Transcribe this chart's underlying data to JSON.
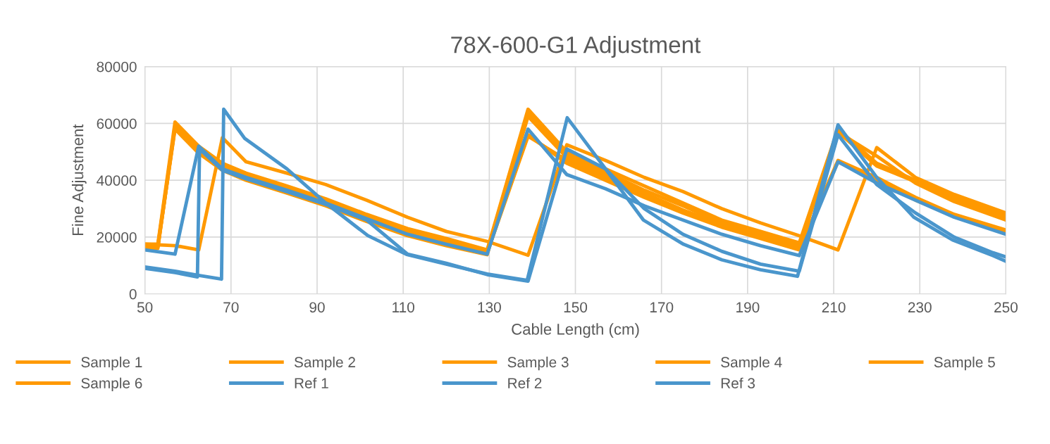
{
  "chart_data": {
    "type": "line",
    "title": "78X-600-G1 Adjustment",
    "xlabel": "Cable Length (cm)",
    "ylabel": "Fine Adjustment",
    "xlim": [
      50,
      250
    ],
    "xticks": [
      50,
      70,
      90,
      110,
      130,
      150,
      170,
      190,
      210,
      230,
      250
    ],
    "ylim": [
      0,
      80000
    ],
    "yticks": [
      0,
      20000,
      40000,
      60000,
      80000
    ],
    "grid": true,
    "legend": "bottom",
    "marker": "none",
    "line_style": "solid",
    "series": [
      {
        "name": "Sample 1",
        "color": "#ff9900",
        "x": [
          50,
          53,
          57,
          62.5,
          68,
          73.5,
          83,
          92,
          101.5,
          111,
          120,
          129.5,
          139,
          148,
          157,
          166,
          175,
          184,
          193,
          202,
          211,
          220,
          229,
          238,
          250
        ],
        "values": [
          17500,
          17500,
          60500,
          52000,
          46000,
          42500,
          38000,
          33500,
          28000,
          23000,
          19500,
          15500,
          65000,
          50000,
          44000,
          38000,
          32000,
          26000,
          22000,
          18000,
          58000,
          46000,
          40000,
          34000,
          28000
        ]
      },
      {
        "name": "Sample 2",
        "color": "#ff9900",
        "x": [
          50,
          53,
          57,
          62.5,
          68,
          73.5,
          83,
          92,
          101.5,
          111,
          120,
          129.5,
          139,
          148,
          157,
          166,
          175,
          184,
          193,
          202,
          211,
          220,
          229,
          238,
          250
        ],
        "values": [
          17000,
          17000,
          59000,
          51000,
          45000,
          41500,
          37000,
          33000,
          27000,
          22000,
          18500,
          15000,
          64000,
          49000,
          43000,
          36500,
          31000,
          25000,
          21000,
          17000,
          57000,
          45000,
          39500,
          33000,
          27000
        ]
      },
      {
        "name": "Sample 3",
        "color": "#ff9900",
        "x": [
          50,
          57,
          62.5,
          68,
          73.5,
          83,
          92,
          101.5,
          111,
          120,
          129.5,
          139,
          148,
          157,
          166,
          175,
          184,
          193,
          202,
          211,
          220,
          229,
          238,
          250
        ],
        "values": [
          17500,
          17000,
          15500,
          55000,
          46500,
          42500,
          38500,
          33000,
          27000,
          22000,
          18500,
          13600,
          52500,
          47000,
          41000,
          36000,
          30000,
          25000,
          20500,
          15500,
          51500,
          41000,
          35000,
          28500
        ]
      },
      {
        "name": "Sample 4",
        "color": "#ff9900",
        "x": [
          50,
          53,
          57,
          62.5,
          68,
          73.5,
          83,
          92,
          101.5,
          111,
          120,
          129.5,
          139,
          148,
          157,
          166,
          175,
          184,
          193,
          202,
          211,
          220,
          229,
          238,
          250
        ],
        "values": [
          16500,
          16500,
          58500,
          50500,
          44500,
          41000,
          36500,
          32500,
          26500,
          21500,
          18000,
          14500,
          55500,
          47000,
          41000,
          35000,
          29000,
          24000,
          20000,
          16000,
          46500,
          40000,
          33000,
          27500,
          22000
        ]
      },
      {
        "name": "Sample 5",
        "color": "#ff9900",
        "x": [
          50,
          53,
          57,
          62.5,
          68,
          73.5,
          83,
          92,
          101.5,
          111,
          120,
          129.5,
          139,
          148,
          157,
          166,
          175,
          184,
          193,
          202,
          211,
          220,
          229,
          238,
          250
        ],
        "values": [
          16500,
          16500,
          58000,
          49500,
          43500,
          40000,
          35500,
          31000,
          25500,
          20500,
          17000,
          13800,
          62500,
          48000,
          42000,
          35500,
          29500,
          24500,
          20000,
          16500,
          57000,
          48500,
          39000,
          32500,
          26000
        ]
      },
      {
        "name": "Sample 6",
        "color": "#ff9900",
        "x": [
          50,
          53,
          57,
          62.5,
          68,
          73.5,
          83,
          92,
          101.5,
          111,
          120,
          129.5,
          139,
          148,
          157,
          166,
          175,
          184,
          193,
          202,
          211,
          220,
          229,
          238,
          250
        ],
        "values": [
          16000,
          16000,
          59000,
          51000,
          45000,
          41500,
          37000,
          32500,
          27000,
          22000,
          18000,
          14500,
          56000,
          46000,
          40000,
          34000,
          28500,
          23500,
          19500,
          15500,
          47000,
          41000,
          34000,
          28000,
          22500
        ]
      },
      {
        "name": "Ref 1",
        "color": "#4a96cc",
        "x": [
          50,
          57,
          62.5,
          68,
          73.5,
          83,
          92,
          101.5,
          111,
          120,
          129.5,
          139,
          148,
          157,
          166,
          175,
          184,
          193,
          202,
          211,
          220,
          229,
          238,
          250
        ],
        "values": [
          15500,
          14000,
          52000,
          44000,
          41000,
          36500,
          32000,
          26500,
          21000,
          17500,
          14000,
          58000,
          42000,
          37000,
          31000,
          26000,
          21000,
          17000,
          13500,
          46500,
          39000,
          33000,
          27000,
          21000
        ]
      },
      {
        "name": "Ref 2",
        "color": "#4a96cc",
        "x": [
          50,
          57,
          62.5,
          67.8,
          68.3,
          73.2,
          83,
          92,
          101.8,
          110.8,
          120,
          129.5,
          138.8,
          148.1,
          157,
          165.8,
          175.1,
          184,
          193,
          201.6,
          211,
          220,
          228.6,
          237.6,
          247,
          250
        ],
        "values": [
          9500,
          8000,
          6500,
          5200,
          65000,
          54700,
          44000,
          32000,
          20500,
          13900,
          10500,
          7000,
          4800,
          62000,
          44000,
          26000,
          17500,
          12000,
          8500,
          6200,
          59500,
          41000,
          27000,
          19000,
          13500,
          11500
        ]
      },
      {
        "name": "Ref 3",
        "color": "#4a96cc",
        "x": [
          50,
          57,
          62.2,
          62.7,
          68,
          73.5,
          83,
          92,
          101.5,
          111,
          120,
          129.5,
          139,
          148,
          157,
          166,
          175,
          184,
          193,
          202,
          211,
          220,
          229,
          238,
          247,
          250
        ],
        "values": [
          9000,
          7500,
          6000,
          51000,
          43500,
          40500,
          36000,
          31500,
          26000,
          14000,
          10800,
          6800,
          4500,
          51000,
          44000,
          30000,
          21000,
          15000,
          10500,
          8000,
          56000,
          38500,
          28500,
          20000,
          14500,
          13000
        ]
      }
    ]
  }
}
